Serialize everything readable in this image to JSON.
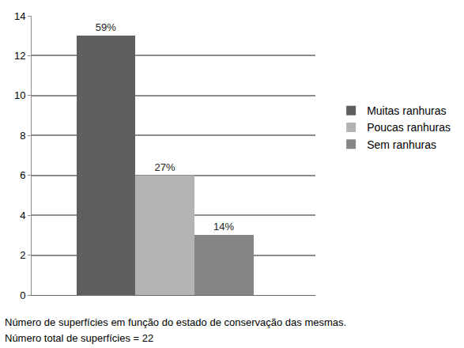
{
  "chart_data": {
    "type": "bar",
    "categories": [
      "Muitas ranhuras",
      "Poucas ranhuras",
      "Sem ranhuras"
    ],
    "values": [
      13,
      6,
      3
    ],
    "value_labels": [
      "59%",
      "27%",
      "14%"
    ],
    "colors": [
      "#5f5f5f",
      "#b3b3b3",
      "#858585"
    ],
    "ylim": [
      0,
      14
    ],
    "yticks": [
      0,
      2,
      4,
      6,
      8,
      10,
      12,
      14
    ],
    "grid": true,
    "legend": "right",
    "data_labels": true,
    "tick_labels": "y",
    "annotations": [
      "Número de superfícies em função do estado de conservação das mesmas.",
      "Número total de superfícies = 22"
    ]
  }
}
